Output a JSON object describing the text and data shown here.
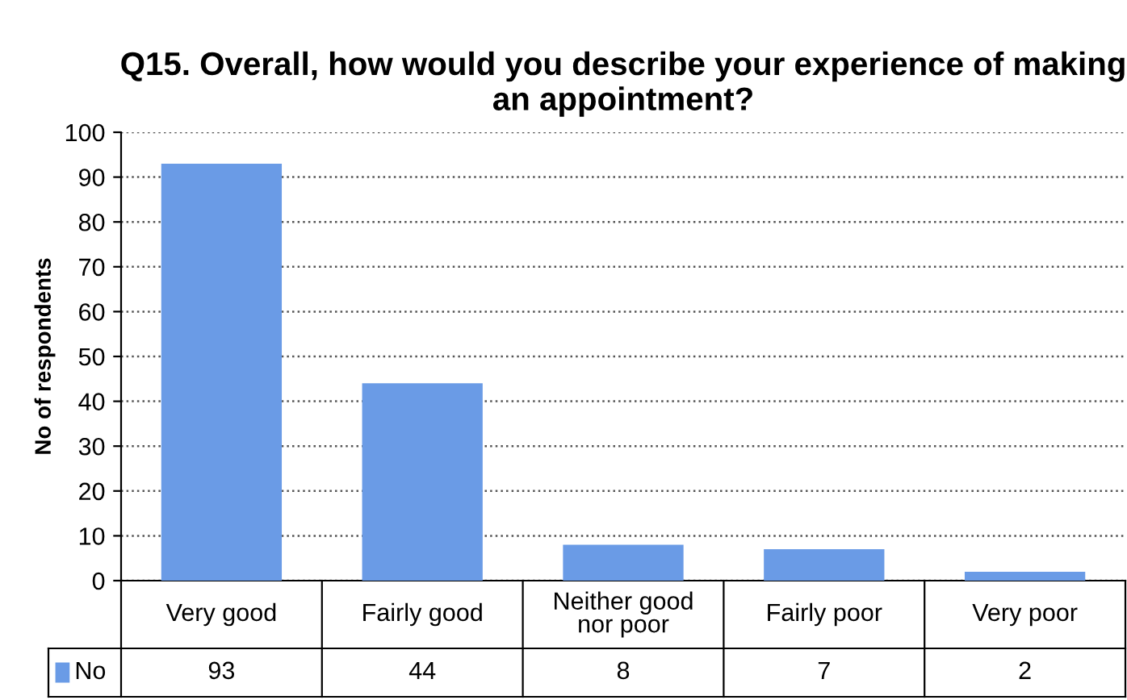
{
  "chart_data": {
    "type": "bar",
    "title": "Q15. Overall, how would you describe your experience of making an appointment?",
    "ylabel": "No of respondents",
    "categories": [
      "Very good",
      "Fairly good",
      "Neither good nor poor",
      "Fairly poor",
      "Very poor"
    ],
    "series": [
      {
        "name": "No",
        "color": "#6a9be6",
        "values": [
          93,
          44,
          8,
          7,
          2
        ]
      }
    ],
    "ylim": [
      0,
      100
    ],
    "yticks": [
      0,
      10,
      20,
      30,
      40,
      50,
      60,
      70,
      80,
      90,
      100
    ],
    "grid": "y",
    "legend": "bottom",
    "data_labels": true
  }
}
